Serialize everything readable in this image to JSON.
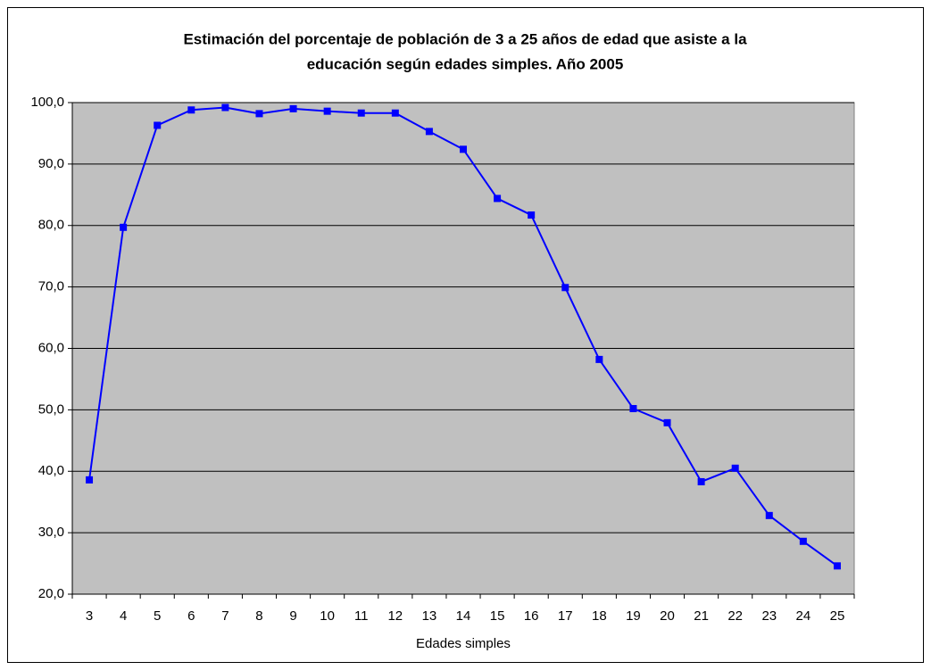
{
  "chart_data": {
    "type": "line",
    "title": [
      "Estimación del porcentaje de población de 3 a 25 años de edad que asiste a la",
      "educación según edades simples. Año 2005"
    ],
    "x_label": "Edades simples",
    "categories": [
      "3",
      "4",
      "5",
      "6",
      "7",
      "8",
      "9",
      "10",
      "11",
      "12",
      "13",
      "14",
      "15",
      "16",
      "17",
      "18",
      "19",
      "20",
      "21",
      "22",
      "23",
      "24",
      "25"
    ],
    "values": [
      38.6,
      79.7,
      96.3,
      98.8,
      99.2,
      98.2,
      99.0,
      98.6,
      98.3,
      98.3,
      95.3,
      92.4,
      84.4,
      81.7,
      69.9,
      58.2,
      50.2,
      47.9,
      38.3,
      40.5,
      32.8,
      28.6,
      24.6
    ],
    "color": "#0000ff",
    "ylim": [
      20,
      100
    ],
    "yticks": [
      {
        "value": 20,
        "label": "20,0"
      },
      {
        "value": 30,
        "label": "30,0"
      },
      {
        "value": 40,
        "label": "40,0"
      },
      {
        "value": 50,
        "label": "50,0"
      },
      {
        "value": 60,
        "label": "60,0"
      },
      {
        "value": 70,
        "label": "70,0"
      },
      {
        "value": 80,
        "label": "80,0"
      },
      {
        "value": 90,
        "label": "90,0"
      },
      {
        "value": 100,
        "label": "100,0"
      }
    ],
    "grid": true,
    "plot_background": "#c0c0c0"
  }
}
